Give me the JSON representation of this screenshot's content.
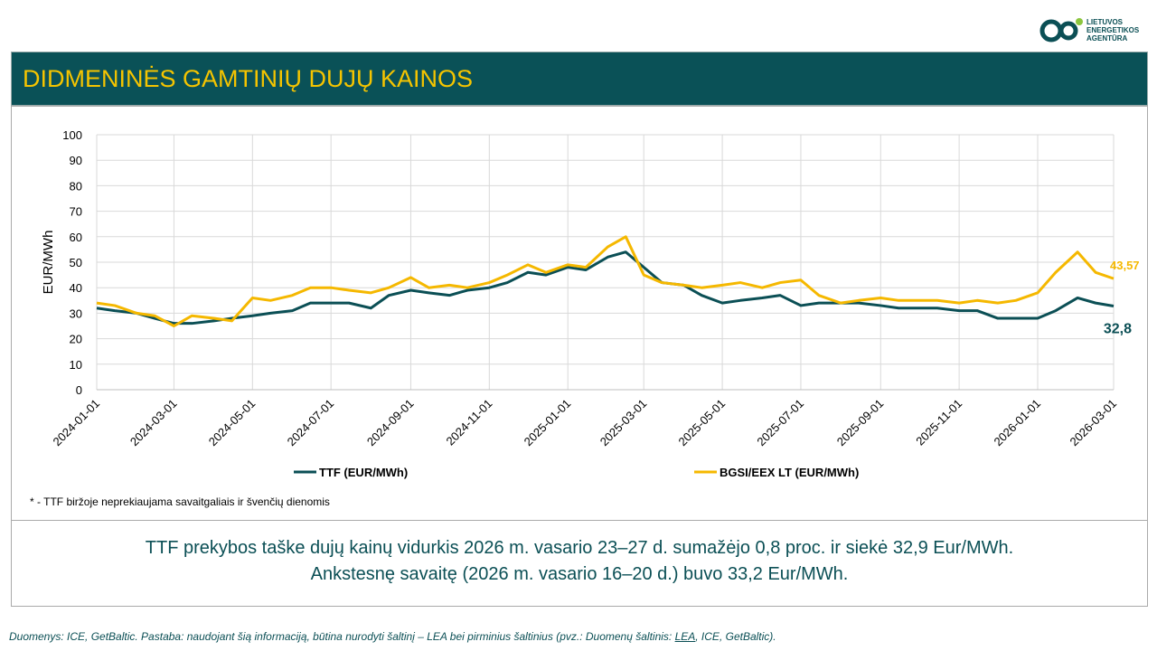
{
  "header": {
    "title": "DIDMENINĖS GAMTINIŲ DUJŲ KAINOS"
  },
  "logo": {
    "lines": [
      "LIETUVOS",
      "ENERGETIKOS",
      "AGENTŪRA"
    ]
  },
  "chart_data": {
    "type": "line",
    "y_label": "EUR/MWh",
    "x": [
      "2024-01-01",
      "2024-01-15",
      "2024-02-01",
      "2024-02-15",
      "2024-03-01",
      "2024-03-15",
      "2024-04-01",
      "2024-04-15",
      "2024-05-01",
      "2024-05-15",
      "2024-06-01",
      "2024-06-15",
      "2024-07-01",
      "2024-07-15",
      "2024-08-01",
      "2024-08-15",
      "2024-09-01",
      "2024-09-15",
      "2024-10-01",
      "2024-10-15",
      "2024-11-01",
      "2024-11-15",
      "2024-12-01",
      "2024-12-15",
      "2025-01-01",
      "2025-01-15",
      "2025-02-01",
      "2025-02-15",
      "2025-03-01",
      "2025-03-15",
      "2025-04-01",
      "2025-04-15",
      "2025-05-01",
      "2025-05-15",
      "2025-06-01",
      "2025-06-15",
      "2025-07-01",
      "2025-07-15",
      "2025-08-01",
      "2025-08-15",
      "2025-09-01",
      "2025-09-15",
      "2025-10-01",
      "2025-10-15",
      "2025-11-01",
      "2025-11-15",
      "2025-12-01",
      "2025-12-15",
      "2026-01-01",
      "2026-01-15",
      "2026-02-01",
      "2026-02-15",
      "2026-03-01"
    ],
    "series": [
      {
        "name": "TTF (EUR/MWh)",
        "color": "#0b4f55",
        "end_label": "32,8",
        "values": [
          32,
          31,
          30,
          28,
          26,
          26,
          27,
          28,
          29,
          30,
          31,
          34,
          34,
          34,
          32,
          37,
          39,
          38,
          37,
          39,
          40,
          42,
          46,
          45,
          48,
          47,
          52,
          54,
          48,
          42,
          41,
          37,
          34,
          35,
          36,
          37,
          33,
          34,
          34,
          34,
          33,
          32,
          32,
          32,
          31,
          31,
          28,
          28,
          28,
          31,
          36,
          34,
          32.8
        ]
      },
      {
        "name": "BGSI/EEX LT (EUR/MWh)",
        "color": "#f5b800",
        "end_label": "43,57",
        "values": [
          34,
          33,
          30,
          29,
          25,
          29,
          28,
          27,
          36,
          35,
          37,
          40,
          40,
          39,
          38,
          40,
          44,
          40,
          41,
          40,
          42,
          45,
          49,
          46,
          49,
          48,
          56,
          60,
          45,
          42,
          41,
          40,
          41,
          42,
          40,
          42,
          43,
          37,
          34,
          35,
          36,
          35,
          35,
          35,
          34,
          35,
          34,
          35,
          38,
          46,
          54,
          46,
          43.57
        ]
      }
    ],
    "xlim": [
      "2024-01-01",
      "2026-03-01"
    ],
    "xticks": [
      "2024-01-01",
      "2024-03-01",
      "2024-05-01",
      "2024-07-01",
      "2024-09-01",
      "2024-11-01",
      "2025-01-01",
      "2025-03-01",
      "2025-05-01",
      "2025-07-01",
      "2025-09-01",
      "2025-11-01",
      "2026-01-01",
      "2026-03-01"
    ],
    "ylim": [
      0,
      100
    ],
    "yticks": [
      0,
      10,
      20,
      30,
      40,
      50,
      60,
      70,
      80,
      90,
      100
    ],
    "grid": true,
    "footnote": "* - TTF biržoje neprekiaujama savaitgaliais ir švenčių dienomis"
  },
  "summary": {
    "lines": [
      "TTF prekybos taške dujų kainų vidurkis 2026 m. vasario 23–27 d. sumažėjo 0,8 proc. ir siekė 32,9 Eur/MWh.",
      "Ankstesnę savaitę (2026 m. vasario 16–20 d.) buvo 33,2 Eur/MWh."
    ]
  },
  "footer": {
    "before": "Duomenys: ICE, GetBaltic. Pastaba: naudojant šią informaciją, būtina nurodyti šaltinį – LEA bei pirminius šaltinius (pvz.: Duomenų šaltinis: ",
    "link": "LEA",
    "after": ", ICE, GetBaltic)."
  }
}
